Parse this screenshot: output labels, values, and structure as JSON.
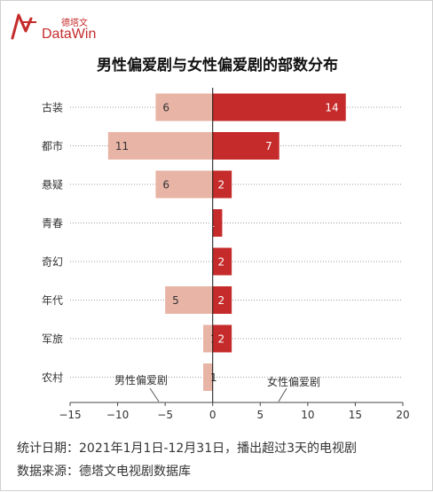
{
  "brand": {
    "name_cn": "德塔文",
    "name_en": "DataWin",
    "accent": "#c62b2b"
  },
  "title": "男性偏爱剧与女性偏爱剧的部数分布",
  "footer": {
    "line1": "统计日期：2021年1月1日-12月31日，播出超过3天的电视剧",
    "line2": "数据来源：德塔文电视剧数据库"
  },
  "chart_data": {
    "type": "bar",
    "orientation": "horizontal-diverging",
    "title": "男性偏爱剧与女性偏爱剧的部数分布",
    "categories": [
      "古装",
      "都市",
      "悬疑",
      "青春",
      "奇幻",
      "年代",
      "军旅",
      "农村"
    ],
    "series": [
      {
        "name": "男性偏爱剧",
        "values": [
          -6,
          -11,
          -6,
          0,
          0,
          -5,
          -1,
          -1
        ],
        "labels": [
          "6",
          "11",
          "6",
          "",
          "",
          "5",
          "1",
          "1"
        ],
        "color": "#e8b4a6"
      },
      {
        "name": "女性偏爱剧",
        "values": [
          14,
          7,
          2,
          1,
          2,
          2,
          2,
          0
        ],
        "labels": [
          "14",
          "7",
          "2",
          "1",
          "2",
          "2",
          "2",
          ""
        ],
        "color": "#c62b2b"
      }
    ],
    "xlim": [
      -15,
      20
    ],
    "xticks": [
      -15,
      -10,
      -5,
      0,
      5,
      10,
      15,
      20
    ],
    "xlabel": "",
    "ylabel": "",
    "grid": "horizontal-dotted",
    "legend": "series names printed inside plot at bottom"
  }
}
